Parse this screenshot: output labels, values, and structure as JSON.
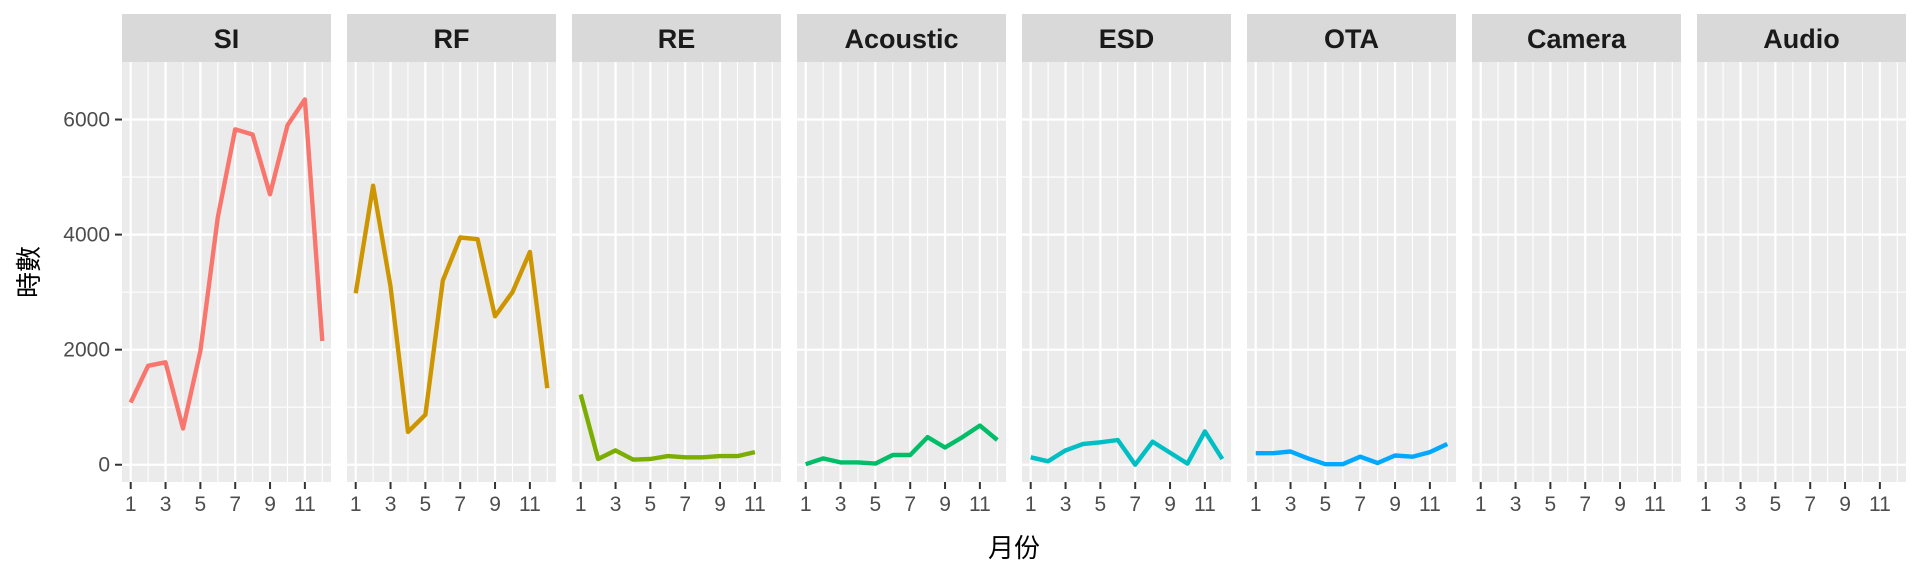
{
  "chart_data": {
    "type": "line",
    "layout": "facet_wrap",
    "xlabel": "月份",
    "ylabel": "時數",
    "xlim": [
      0.5,
      12.5
    ],
    "ylim": [
      -300,
      7000
    ],
    "x_ticks": [
      1,
      3,
      5,
      7,
      9,
      11
    ],
    "y_ticks": [
      0,
      2000,
      4000,
      6000
    ],
    "grid": true,
    "legend": "none",
    "panels": [
      {
        "name": "SI",
        "color": "#F8766D",
        "x": [
          1,
          2,
          3,
          4,
          5,
          6,
          7,
          8,
          9,
          10,
          11,
          12
        ],
        "values": [
          1080,
          1720,
          1780,
          630,
          1980,
          4300,
          5830,
          5740,
          4700,
          5900,
          6350,
          2150
        ]
      },
      {
        "name": "RF",
        "color": "#CD9600",
        "x": [
          1,
          2,
          3,
          4,
          5,
          6,
          7,
          8,
          9,
          10,
          11,
          12
        ],
        "values": [
          2980,
          4850,
          3100,
          570,
          870,
          3200,
          3950,
          3920,
          2580,
          3000,
          3700,
          1330
        ]
      },
      {
        "name": "RE",
        "color": "#7CAE00",
        "x": [
          1,
          2,
          3,
          4,
          5,
          6,
          7,
          8,
          9,
          10,
          11
        ],
        "values": [
          1220,
          100,
          250,
          90,
          100,
          150,
          130,
          130,
          150,
          150,
          220
        ]
      },
      {
        "name": "Acoustic",
        "color": "#00BE67",
        "x": [
          1,
          2,
          3,
          4,
          5,
          6,
          7,
          8,
          9,
          10,
          11,
          12
        ],
        "values": [
          10,
          110,
          40,
          40,
          20,
          170,
          170,
          480,
          300,
          480,
          680,
          430
        ]
      },
      {
        "name": "ESD",
        "color": "#00BFC4",
        "x": [
          1,
          2,
          3,
          4,
          5,
          6,
          7,
          8,
          9,
          10,
          11,
          12
        ],
        "values": [
          130,
          60,
          250,
          360,
          390,
          430,
          0,
          400,
          210,
          20,
          580,
          100
        ]
      },
      {
        "name": "OTA",
        "color": "#00A9FF",
        "x": [
          1,
          2,
          3,
          4,
          5,
          6,
          7,
          8,
          9,
          10,
          11,
          12
        ],
        "values": [
          200,
          200,
          230,
          110,
          10,
          10,
          140,
          30,
          160,
          140,
          220,
          360
        ]
      },
      {
        "name": "Camera",
        "color": "#C77CFF",
        "x": [],
        "values": []
      },
      {
        "name": "Audio",
        "color": "#FF61CC",
        "x": [],
        "values": []
      }
    ]
  }
}
